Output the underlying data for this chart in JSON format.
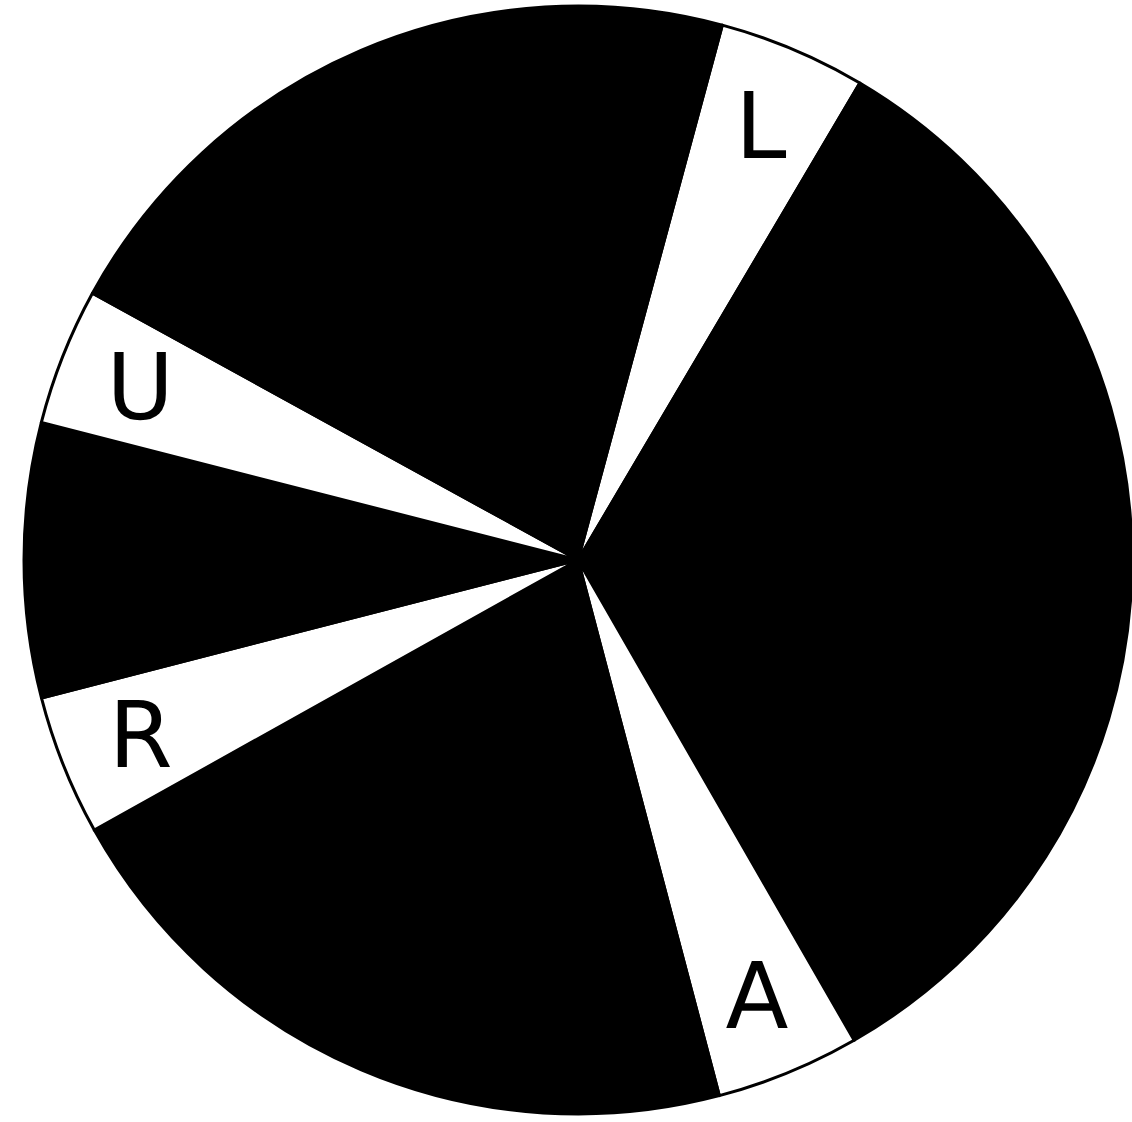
{
  "chart_data": {
    "type": "pie",
    "categories": [
      "L",
      null,
      "A",
      null,
      "R",
      null,
      "U",
      null
    ],
    "values": [
      4.3,
      33.2,
      4.2,
      21.0,
      4.1,
      8.0,
      4.0,
      21.2
    ],
    "colors": [
      "#ffffff",
      "#000000",
      "#ffffff",
      "#000000",
      "#ffffff",
      "#000000",
      "#ffffff",
      "#000000"
    ]
  }
}
